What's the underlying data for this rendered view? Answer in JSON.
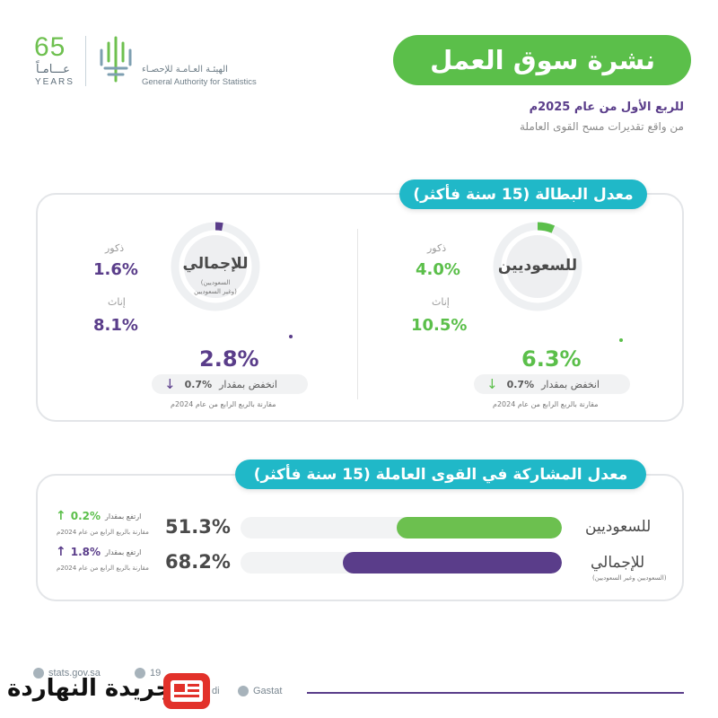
{
  "header": {
    "title": "نشرة سوق العمل",
    "subtitle": "للربع الأول من عام 2025م",
    "source": "من واقع تقديرات مسح القوى العاملة"
  },
  "logo": {
    "years_number": "65",
    "years_ar": "عـــامـاً",
    "years_en": "YEARS",
    "org_ar": "الهيئـة العـامـة للإحصـاء",
    "org_en": "General Authority for Statistics"
  },
  "unemployment": {
    "section_title": "معدل البطالة (15 سنة فأكثر)",
    "saudis": {
      "label": "للسعوديين",
      "males_label": "ذكور",
      "males_value": "4.0%",
      "females_label": "إناث",
      "females_value": "10.5%",
      "rate": "6.3%",
      "rate_fraction": 0.063,
      "change_text": "انخفض بمقدار",
      "change_value": "0.7%",
      "comparison": "مقارنة بالربع الرابع من عام 2024م"
    },
    "total": {
      "label": "للإجمالي",
      "sublabel_1": "(السعوديين",
      "sublabel_2": "وغير السعوديين)",
      "males_label": "ذكور",
      "males_value": "1.6%",
      "females_label": "إناث",
      "females_value": "8.1%",
      "rate": "2.8%",
      "rate_fraction": 0.028,
      "change_text": "انخفض بمقدار",
      "change_value": "0.7%",
      "comparison": "مقارنة بالربع الرابع من عام 2024م"
    }
  },
  "participation": {
    "section_title": "معدل المشاركة في القوى العاملة (15 سنة فأكثر)",
    "rows": [
      {
        "label": "للسعوديين",
        "sublabel": "",
        "value": "51.3%",
        "fraction": 0.513,
        "change_text": "ارتفع بمقدار",
        "change_value": "0.2%",
        "comparison": "مقارنة بالربع الرابع من عام 2024م"
      },
      {
        "label": "للإجمالي",
        "sublabel": "(السعوديين وغير السعوديين)",
        "value": "68.2%",
        "fraction": 0.682,
        "change_text": "ارتفع بمقدار",
        "change_value": "1.8%",
        "comparison": "مقارنة بالربع الرابع من عام 2024م"
      }
    ]
  },
  "footer": {
    "website": "stats.gov.sa",
    "phone": "19",
    "social_suffix": "di",
    "linkedin": "Gastat",
    "newspaper": "جريدة النهاردة"
  },
  "colors": {
    "green": "#5bbf4a",
    "purple": "#5a3d8a",
    "teal": "#20b8c8"
  }
}
